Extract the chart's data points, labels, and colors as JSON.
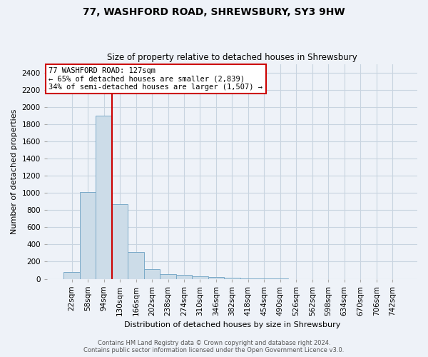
{
  "title": "77, WASHFORD ROAD, SHREWSBURY, SY3 9HW",
  "subtitle": "Size of property relative to detached houses in Shrewsbury",
  "xlabel": "Distribution of detached houses by size in Shrewsbury",
  "ylabel": "Number of detached properties",
  "footer_line1": "Contains HM Land Registry data © Crown copyright and database right 2024.",
  "footer_line2": "Contains public sector information licensed under the Open Government Licence v3.0.",
  "bar_labels": [
    "22sqm",
    "58sqm",
    "94sqm",
    "130sqm",
    "166sqm",
    "202sqm",
    "238sqm",
    "274sqm",
    "310sqm",
    "346sqm",
    "382sqm",
    "418sqm",
    "454sqm",
    "490sqm",
    "526sqm",
    "562sqm",
    "598sqm",
    "634sqm",
    "670sqm",
    "706sqm",
    "742sqm"
  ],
  "bar_values": [
    80,
    1010,
    1900,
    870,
    315,
    115,
    55,
    45,
    30,
    18,
    10,
    3,
    2,
    1,
    0,
    0,
    0,
    0,
    0,
    0,
    0
  ],
  "bar_color": "#ccdce8",
  "bar_edge_color": "#7aaac8",
  "grid_color": "#c8d4e0",
  "background_color": "#eef2f8",
  "vline_color": "#cc0000",
  "vline_index": 2.5,
  "annotation_text": "77 WASHFORD ROAD: 127sqm\n← 65% of detached houses are smaller (2,839)\n34% of semi-detached houses are larger (1,507) →",
  "annotation_box_color": "#ffffff",
  "annotation_box_edge": "#cc0000",
  "ylim": [
    0,
    2500
  ],
  "yticks": [
    0,
    200,
    400,
    600,
    800,
    1000,
    1200,
    1400,
    1600,
    1800,
    2000,
    2200,
    2400
  ],
  "title_fontsize": 10,
  "subtitle_fontsize": 8.5,
  "xlabel_fontsize": 8,
  "ylabel_fontsize": 8,
  "tick_fontsize": 7.5,
  "annot_fontsize": 7.5,
  "footer_fontsize": 6
}
